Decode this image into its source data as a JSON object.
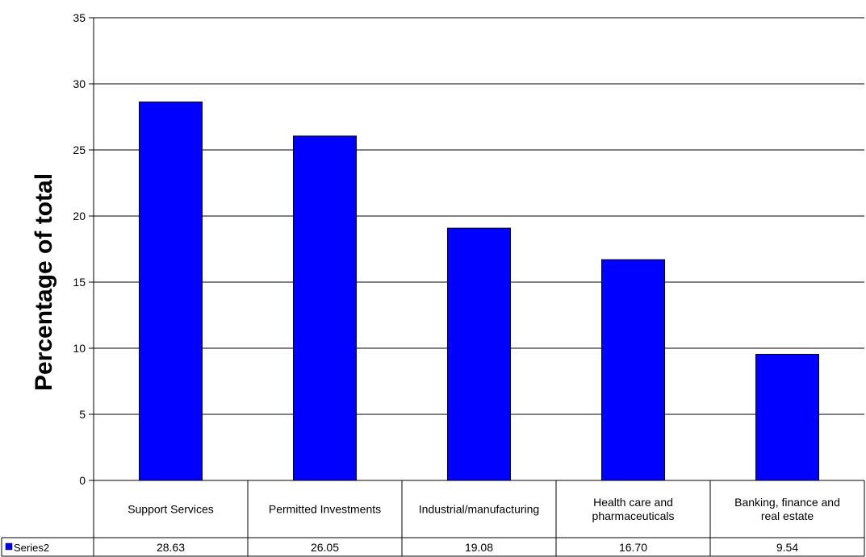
{
  "chart_data": {
    "type": "bar",
    "title": "",
    "xlabel": "",
    "ylabel": "Percentage of total",
    "categories": [
      "Support Services",
      "Permitted Investments",
      "Industrial/manufacturing",
      "Health care and pharmaceuticals",
      "Banking, finance and real estate"
    ],
    "series": [
      {
        "name": "Series2",
        "values": [
          28.63,
          26.05,
          19.08,
          16.7,
          9.54
        ],
        "value_labels": [
          "28.63",
          "26.05",
          "19.08",
          "16.70",
          "9.54"
        ],
        "color": "#0000FF"
      }
    ],
    "ylim": [
      0,
      35
    ],
    "yticks": [
      "0",
      "5",
      "10",
      "15",
      "20",
      "25",
      "30",
      "35"
    ],
    "grid": true,
    "legend": "data-table-left",
    "data_table": true
  }
}
